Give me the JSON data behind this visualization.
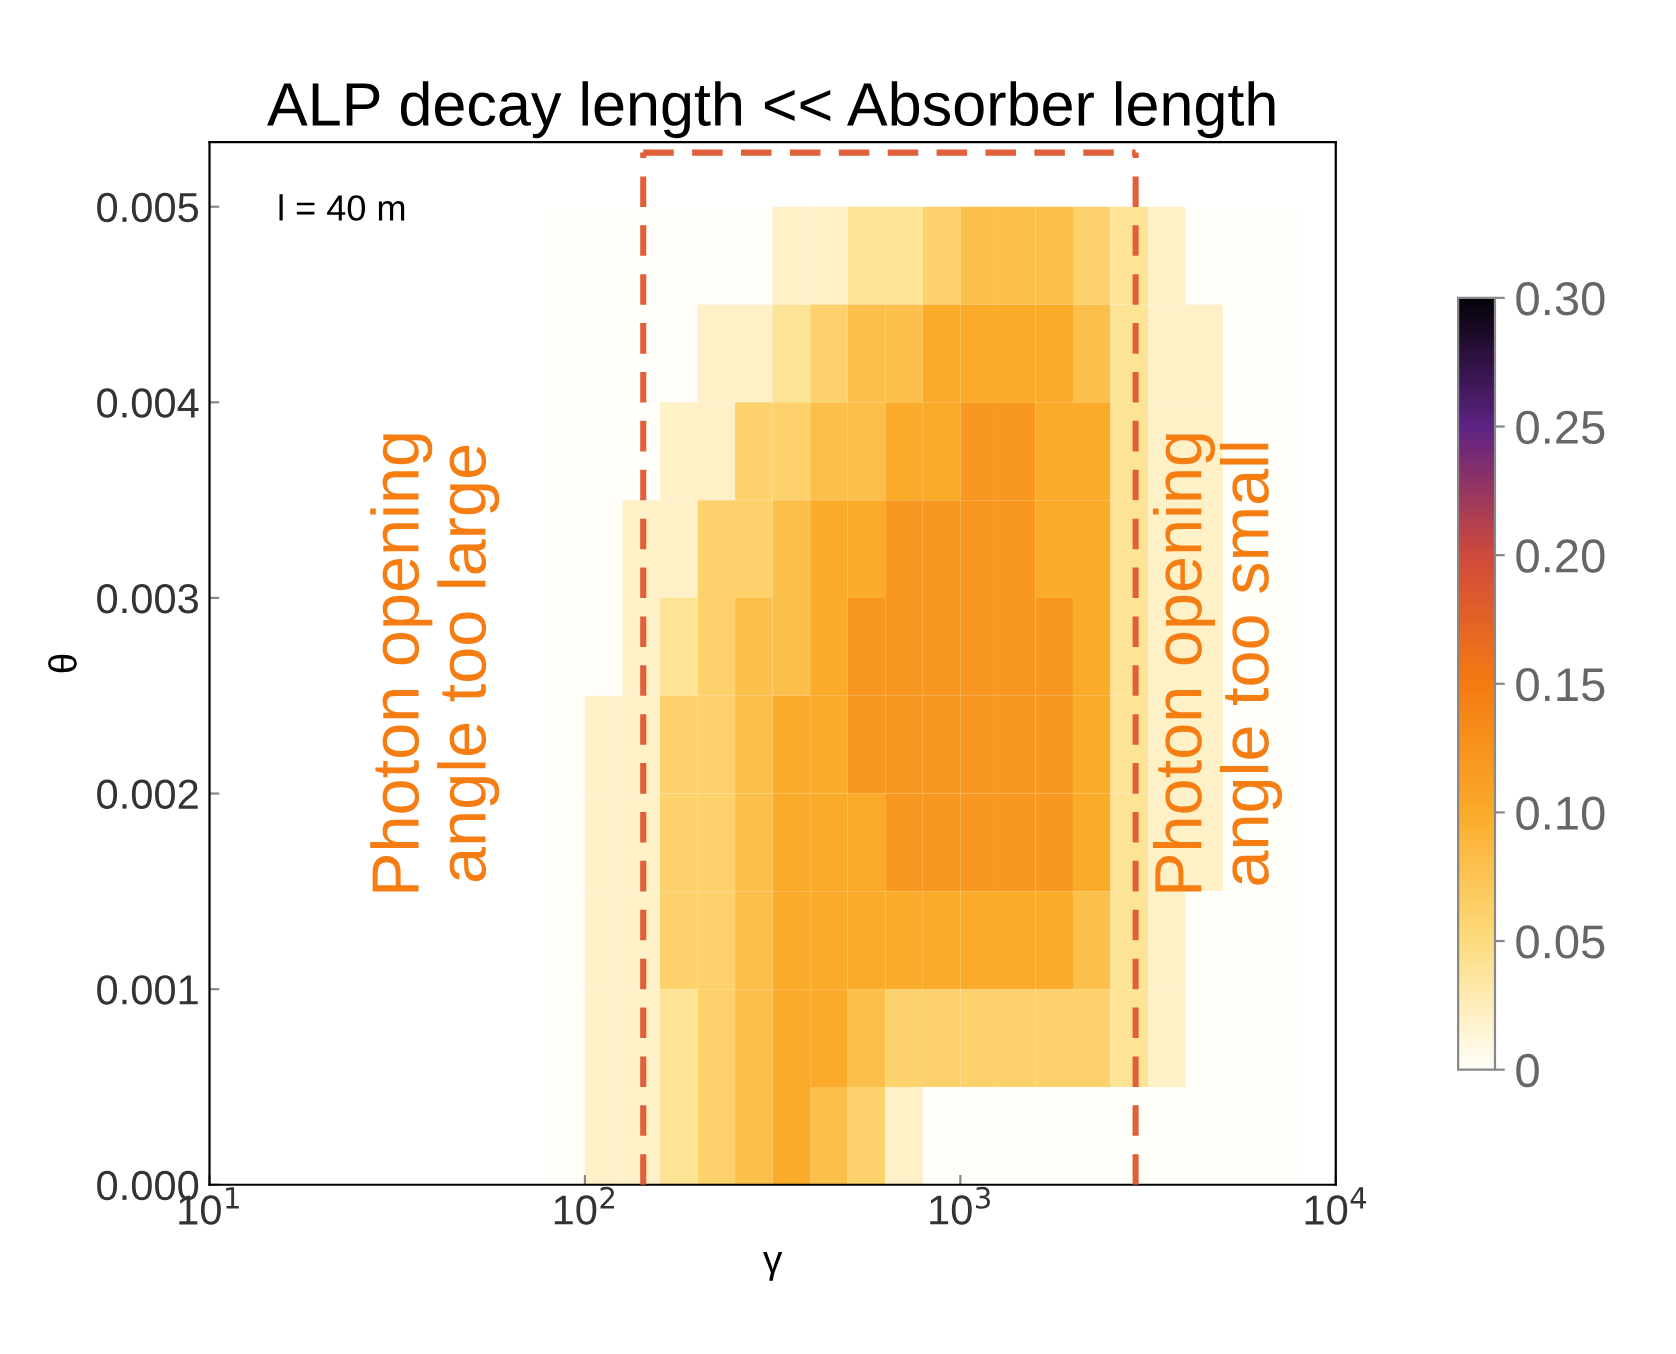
{
  "chart_data": {
    "type": "heatmap",
    "title": "ALP decay length << Absorber length",
    "xlabel": "γ",
    "ylabel": "θ",
    "log": "x",
    "x": [
      89.1,
      112.2,
      141.3,
      177.8,
      223.9,
      281.8,
      354.8,
      446.7,
      562.3,
      707.9,
      891.3,
      1122,
      1413,
      1778,
      2239,
      2818,
      3548,
      4467,
      5623,
      7079
    ],
    "y": [
      0.00475,
      0.00425,
      0.00375,
      0.00325,
      0.00275,
      0.00225,
      0.00175,
      0.00125,
      0.00075,
      0.00025
    ],
    "cells": [
      [
        0,
        0,
        0,
        0,
        0,
        0,
        0.02,
        0.02,
        0.04,
        0.04,
        0.06,
        0.08,
        0.08,
        0.08,
        0.06,
        0.04,
        0.02,
        0,
        0,
        0
      ],
      [
        0,
        0,
        0,
        0,
        0.02,
        0.02,
        0.04,
        0.06,
        0.08,
        0.08,
        0.1,
        0.1,
        0.1,
        0.1,
        0.08,
        0.04,
        0.02,
        0.02,
        0,
        0
      ],
      [
        0,
        0,
        0,
        0.02,
        0.02,
        0.06,
        0.06,
        0.08,
        0.08,
        0.1,
        0.1,
        0.12,
        0.12,
        0.1,
        0.1,
        0.04,
        0.02,
        0.02,
        0,
        0
      ],
      [
        0,
        0,
        0.02,
        0.02,
        0.06,
        0.06,
        0.08,
        0.1,
        0.1,
        0.12,
        0.12,
        0.12,
        0.12,
        0.1,
        0.1,
        0.04,
        0.02,
        0.02,
        0,
        0
      ],
      [
        0,
        0,
        0.02,
        0.04,
        0.06,
        0.08,
        0.08,
        0.1,
        0.12,
        0.12,
        0.12,
        0.12,
        0.12,
        0.12,
        0.1,
        0.04,
        0.02,
        0.02,
        0,
        0
      ],
      [
        0,
        0.02,
        0.02,
        0.06,
        0.06,
        0.08,
        0.1,
        0.1,
        0.12,
        0.12,
        0.12,
        0.12,
        0.12,
        0.12,
        0.1,
        0.04,
        0.02,
        0.02,
        0,
        0
      ],
      [
        0,
        0.02,
        0.02,
        0.06,
        0.06,
        0.08,
        0.1,
        0.1,
        0.1,
        0.12,
        0.12,
        0.12,
        0.12,
        0.12,
        0.1,
        0.04,
        0.02,
        0.02,
        0,
        0
      ],
      [
        0,
        0.02,
        0.02,
        0.06,
        0.06,
        0.08,
        0.1,
        0.1,
        0.1,
        0.1,
        0.1,
        0.1,
        0.1,
        0.1,
        0.08,
        0.04,
        0.02,
        0,
        0,
        0
      ],
      [
        0,
        0.02,
        0.02,
        0.04,
        0.06,
        0.08,
        0.1,
        0.1,
        0.08,
        0.06,
        0.06,
        0.06,
        0.06,
        0.06,
        0.06,
        0.04,
        0.02,
        0,
        0,
        0
      ],
      [
        0,
        0.02,
        0.02,
        0.04,
        0.06,
        0.08,
        0.1,
        0.08,
        0.06,
        0.02,
        0,
        0,
        0,
        0,
        0,
        0,
        0,
        0,
        0,
        0
      ]
    ],
    "xlim": [
      10,
      10000
    ],
    "ylim": [
      0,
      0.00533
    ],
    "xticks": [
      {
        "value": 10,
        "label": "10$^{1}$"
      },
      {
        "value": 100,
        "label": "10$^{2}$"
      },
      {
        "value": 1000,
        "label": "10$^{3}$"
      },
      {
        "value": 10000,
        "label": "10$^{4}$"
      }
    ],
    "yticks": [
      {
        "value": 0,
        "label": "0.000"
      },
      {
        "value": 0.001,
        "label": "0.001"
      },
      {
        "value": 0.002,
        "label": "0.002"
      },
      {
        "value": 0.003,
        "label": "0.003"
      },
      {
        "value": 0.004,
        "label": "0.004"
      },
      {
        "value": 0.005,
        "label": "0.005"
      }
    ],
    "clim": [
      0,
      0.3
    ],
    "cticks": [
      {
        "value": 0,
        "label": "0"
      },
      {
        "value": 0.05,
        "label": "0.05"
      },
      {
        "value": 0.1,
        "label": "0.10"
      },
      {
        "value": 0.15,
        "label": "0.15"
      },
      {
        "value": 0.2,
        "label": "0.20"
      },
      {
        "value": 0.25,
        "label": "0.25"
      },
      {
        "value": 0.3,
        "label": "0.30"
      }
    ],
    "ref_lines": [
      {
        "axis": "x",
        "value": 143,
        "color": "#e0603a",
        "line_style": "dashed"
      },
      {
        "axis": "x",
        "value": 2930,
        "color": "#e0603a",
        "line_style": "dashed"
      }
    ],
    "annotations": [
      "l = 40 m",
      "Photon opening\nangle too large",
      "Photon opening\nangle too small"
    ],
    "grid": false
  }
}
